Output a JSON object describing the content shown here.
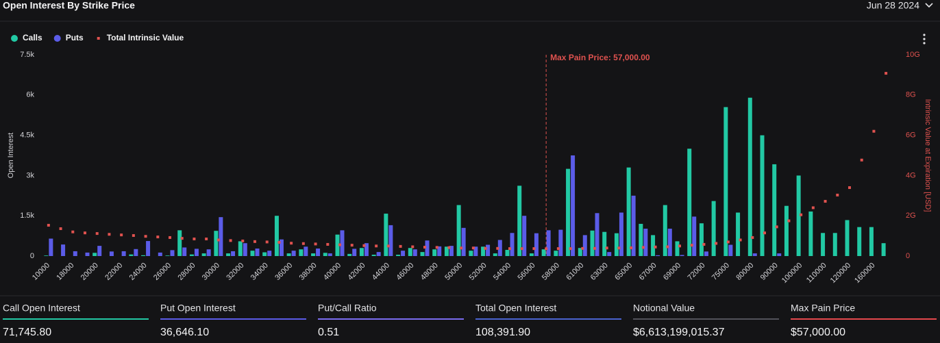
{
  "chart_data": {
    "type": "bar",
    "title": "Open Interest By Strike Price",
    "date": "Jun 28 2024",
    "y_label": "Open Interest",
    "y2_label": "Intrinsic Value at Expiration [USD]",
    "categories": [
      "10000",
      null,
      "18000",
      null,
      "20000",
      null,
      "22000",
      null,
      "24000",
      null,
      "26000",
      null,
      "28000",
      null,
      "30000",
      null,
      "32000",
      null,
      "34000",
      null,
      "36000",
      null,
      "38000",
      null,
      "40000",
      null,
      "42000",
      null,
      "44000",
      null,
      "46000",
      null,
      "48000",
      null,
      "50000",
      null,
      "52000",
      null,
      "54000",
      null,
      "56000",
      null,
      "58000",
      null,
      "61000",
      null,
      "63000",
      null,
      "65000",
      null,
      "67000",
      null,
      "69000",
      null,
      "72000",
      null,
      "75000",
      null,
      "80000",
      null,
      "90000",
      null,
      "100000",
      null,
      "110000",
      null,
      "120000",
      null,
      "160000",
      null
    ],
    "series": [
      {
        "name": "Calls",
        "type": "bar",
        "color": "#22c9a4",
        "values": [
          20,
          0,
          0,
          0,
          120,
          0,
          0,
          60,
          30,
          0,
          20,
          960,
          60,
          100,
          940,
          100,
          550,
          200,
          140,
          1500,
          100,
          250,
          100,
          120,
          800,
          80,
          300,
          50,
          1580,
          50,
          300,
          150,
          250,
          350,
          1900,
          200,
          350,
          100,
          230,
          2620,
          100,
          250,
          200,
          3250,
          300,
          950,
          900,
          850,
          3300,
          1200,
          780,
          1900,
          550,
          4000,
          1220,
          2050,
          5550,
          1620,
          5900,
          4500,
          3420,
          1870,
          3000,
          1660,
          860,
          860,
          1340,
          1080,
          1080,
          480
        ]
      },
      {
        "name": "Puts",
        "type": "bar",
        "color": "#5b5ce8",
        "values": [
          650,
          430,
          180,
          130,
          380,
          170,
          180,
          260,
          560,
          130,
          220,
          320,
          270,
          250,
          1450,
          180,
          480,
          280,
          200,
          620,
          200,
          350,
          280,
          100,
          960,
          270,
          480,
          150,
          1150,
          200,
          250,
          580,
          360,
          380,
          1050,
          350,
          420,
          600,
          860,
          1500,
          850,
          960,
          980,
          3750,
          780,
          1600,
          150,
          1620,
          2250,
          1020,
          30,
          1020,
          40,
          1470,
          170,
          0,
          420,
          0,
          100,
          0,
          100,
          0,
          0,
          0,
          0,
          0,
          0,
          0,
          0,
          0
        ]
      },
      {
        "name": "Total Intrinsic Value",
        "type": "scatter",
        "axis": "y2",
        "color": "#e0524f",
        "values": [
          1.53,
          1.36,
          1.2,
          1.15,
          1.12,
          1.08,
          1.05,
          1.02,
          0.98,
          0.95,
          0.92,
          0.88,
          0.85,
          0.85,
          0.8,
          0.77,
          0.75,
          0.72,
          0.7,
          0.68,
          0.64,
          0.62,
          0.6,
          0.58,
          0.56,
          0.54,
          0.52,
          0.5,
          0.5,
          0.48,
          0.46,
          0.44,
          0.43,
          0.42,
          0.4,
          0.4,
          0.38,
          0.38,
          0.37,
          0.37,
          0.37,
          0.36,
          0.37,
          0.37,
          0.38,
          0.38,
          0.4,
          0.4,
          0.41,
          0.43,
          0.45,
          0.46,
          0.5,
          0.54,
          0.58,
          0.63,
          0.7,
          0.8,
          0.92,
          1.15,
          1.45,
          1.75,
          2.05,
          2.4,
          2.72,
          3.03,
          3.4,
          4.77,
          6.2,
          9.08
        ]
      }
    ],
    "ylim": [
      0,
      7500
    ],
    "yticks": [
      0,
      {
        "value": 1500,
        "label": "1.5k"
      },
      {
        "value": 3000,
        "label": "3k"
      },
      {
        "value": 4500,
        "label": "4.5k"
      },
      {
        "value": 6000,
        "label": "6k"
      },
      {
        "value": 7500,
        "label": "7.5k"
      }
    ],
    "y2lim": [
      0,
      10
    ],
    "y2ticks": [
      0,
      {
        "value": 2,
        "label": "2G"
      },
      {
        "value": 4,
        "label": "4G"
      },
      {
        "value": 6,
        "label": "6G"
      },
      {
        "value": 8,
        "label": "8G"
      },
      {
        "value": 10,
        "label": "10G"
      }
    ],
    "y2_color": "#e0524f",
    "grid": false,
    "annotation": {
      "label": "Max Pain Price: 57,000.00",
      "index": 41,
      "color": "#e0524f"
    }
  },
  "stats": [
    {
      "label": "Call Open Interest",
      "value": "71,745.80",
      "color": "#22c9a4"
    },
    {
      "label": "Put Open Interest",
      "value": "36,646.10",
      "color": "#5b5ce8"
    },
    {
      "label": "Put/Call Ratio",
      "value": "0.51",
      "color": "#7a6cf0"
    },
    {
      "label": "Total Open Interest",
      "value": "108,391.90",
      "color": "#4a63d0"
    },
    {
      "label": "Notional Value",
      "value": "$6,613,199,015.37",
      "color": "#52525b"
    },
    {
      "label": "Max Pain Price",
      "value": "$57,000.00",
      "color": "#e5484d"
    }
  ]
}
